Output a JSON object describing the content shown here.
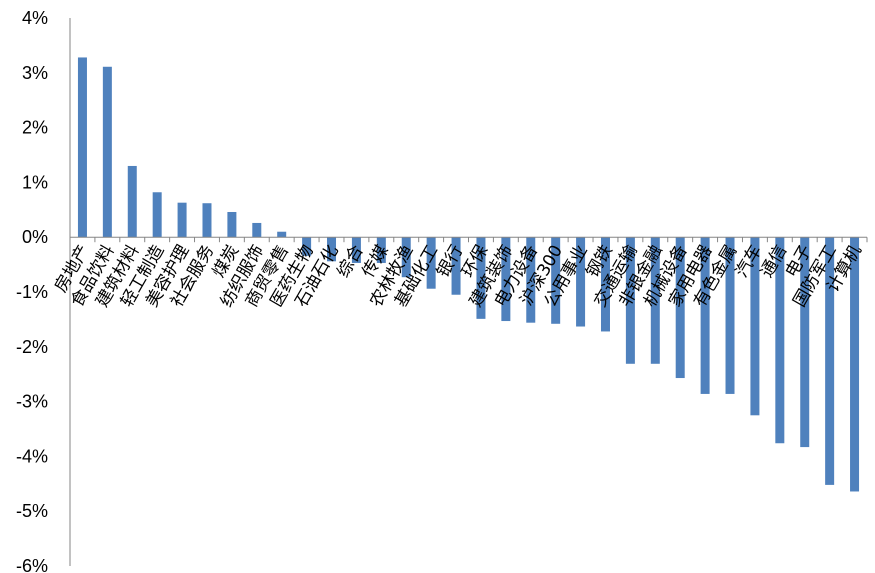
{
  "chart_data": {
    "type": "bar",
    "title": "",
    "xlabel": "",
    "ylabel": "",
    "ylim": [
      -6,
      4
    ],
    "y_ticks": [
      "4%",
      "3%",
      "2%",
      "1%",
      "0%",
      "-1%",
      "-2%",
      "-3%",
      "-4%",
      "-5%",
      "-6%"
    ],
    "grid": false,
    "legend": "none",
    "bar_color": "#4F81BD",
    "categories": [
      "房地产",
      "食品饮料",
      "建筑材料",
      "轻工制造",
      "美容护理",
      "社会服务",
      "煤炭",
      "纺织服饰",
      "商贸零售",
      "医药生物",
      "石油石化",
      "综合",
      "传媒",
      "农林牧渔",
      "基础化工",
      "银行",
      "环保",
      "建筑装饰",
      "电力设备",
      "沪深300",
      "公用事业",
      "钢铁",
      "交通运输",
      "非银金融",
      "机械设备",
      "家用电器",
      "有色金属",
      "汽车",
      "通信",
      "电子",
      "国防军工",
      "计算机"
    ],
    "values": [
      3.28,
      3.11,
      1.3,
      0.82,
      0.63,
      0.62,
      0.46,
      0.26,
      0.1,
      -0.34,
      -0.44,
      -0.47,
      -0.47,
      -0.73,
      -0.94,
      -1.05,
      -1.49,
      -1.53,
      -1.56,
      -1.58,
      -1.63,
      -1.72,
      -2.31,
      -2.31,
      -2.57,
      -2.86,
      -2.86,
      -3.25,
      -3.76,
      -3.83,
      -4.52,
      -4.64
    ]
  }
}
